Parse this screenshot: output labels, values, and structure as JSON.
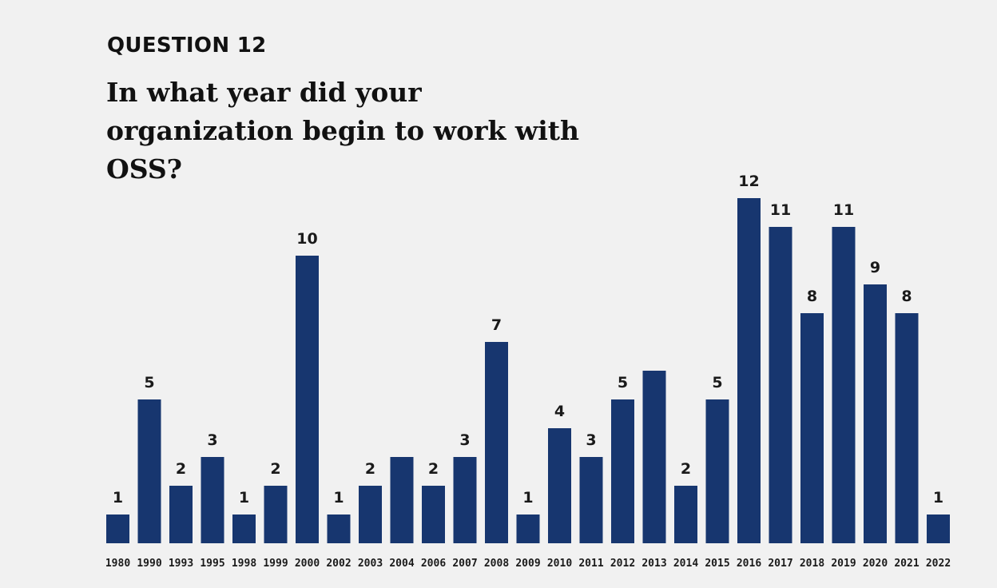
{
  "question_label": "QUESTION 12",
  "question_title": "In what year did your organization begin to work with OSS?",
  "colors": {
    "bar": "#17366f",
    "background": "#f1f1f1",
    "text": "#111111"
  },
  "chart_data": {
    "type": "bar",
    "title": "In what year did your organization begin to work with OSS?",
    "xlabel": "",
    "ylabel": "",
    "grid": false,
    "legend": "none",
    "ylim": [
      0,
      12
    ],
    "categories": [
      "1980",
      "1990",
      "1993",
      "1995",
      "1998",
      "1999",
      "2000",
      "2002",
      "2003",
      "2004",
      "2006",
      "2007",
      "2008",
      "2009",
      "2010",
      "2011",
      "2012",
      "2013",
      "2014",
      "2015",
      "2016",
      "2017",
      "2018",
      "2019",
      "2020",
      "2021",
      "2022"
    ],
    "values": [
      1,
      5,
      2,
      3,
      1,
      2,
      10,
      1,
      2,
      3,
      2,
      3,
      7,
      1,
      4,
      3,
      5,
      6,
      2,
      5,
      12,
      11,
      8,
      11,
      9,
      8,
      1
    ],
    "data_labels": [
      "1",
      "5",
      "2",
      "3",
      "1",
      "2",
      "10",
      "1",
      "2",
      "",
      "2",
      "3",
      "7",
      "1",
      "4",
      "3",
      "5",
      "",
      "2",
      "5",
      "12",
      "11",
      "8",
      "11",
      "9",
      "8",
      "1"
    ]
  }
}
